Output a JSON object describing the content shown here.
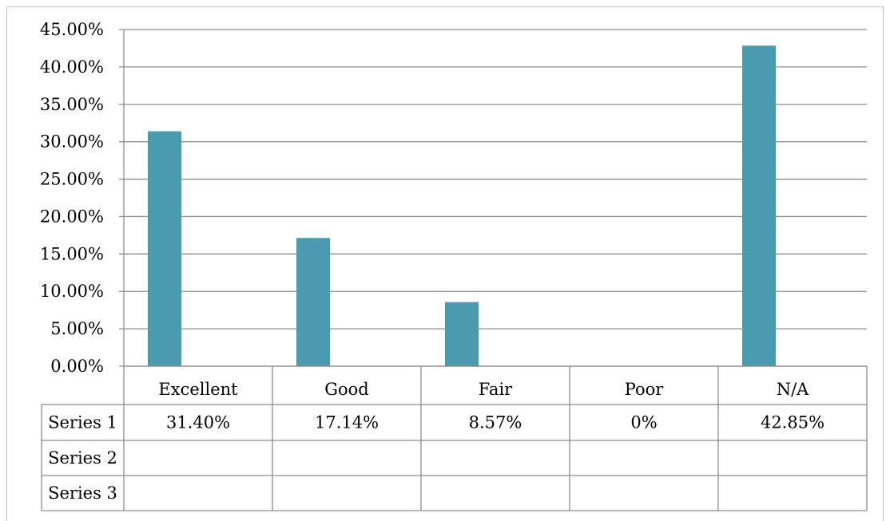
{
  "chart_data": {
    "type": "bar",
    "categories": [
      "Excellent",
      "Good",
      "Fair",
      "Poor",
      "N/A"
    ],
    "series": [
      {
        "name": "Series 1",
        "values": [
          31.4,
          17.14,
          8.57,
          0,
          42.85
        ]
      }
    ],
    "y_ticks": [
      "0.00%",
      "5.00%",
      "10.00%",
      "15.00%",
      "20.00%",
      "25.00%",
      "30.00%",
      "35.00%",
      "40.00%",
      "45.00%"
    ],
    "ylim": [
      0,
      45
    ],
    "grid": true,
    "bar_color": "#4a9bb0",
    "data_table": {
      "rows": [
        {
          "name": "Series 1",
          "cells": [
            "31.40%",
            "17.14%",
            "8.57%",
            "0%",
            "42.85%"
          ]
        },
        {
          "name": "Series 2",
          "cells": [
            "",
            "",
            "",
            "",
            ""
          ]
        },
        {
          "name": "Series 3",
          "cells": [
            "",
            "",
            "",
            "",
            ""
          ]
        }
      ]
    }
  }
}
